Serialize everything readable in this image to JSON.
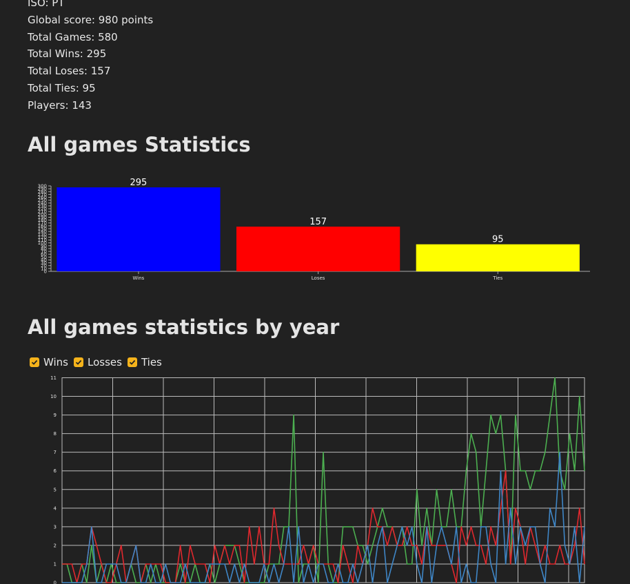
{
  "country": {
    "iso": "ISO: PT",
    "global_score": "Global score: 980 points",
    "total_games": "Total Games: 580",
    "total_wins": "Total Wins: 295",
    "total_loses": "Total Loses: 157",
    "total_ties": "Total Ties: 95",
    "players": "Players: 143"
  },
  "sections": {
    "all_games_title": "All games Statistics",
    "by_year_title": "All games statistics by year"
  },
  "legend": [
    {
      "label": "Wins",
      "checked": true,
      "icon": "checkbox-checked-icon"
    },
    {
      "label": "Losses",
      "checked": true,
      "icon": "checkbox-checked-icon"
    },
    {
      "label": "Ties",
      "checked": true,
      "icon": "checkbox-checked-icon"
    }
  ],
  "colors": {
    "background": "#212121",
    "checkbox": "#f5b31b",
    "bar_wins": "#0000ff",
    "bar_loses": "#ff0000",
    "bar_ties": "#ffff00",
    "line_wins": "#4caf50",
    "line_losses": "#e0282e",
    "line_ties": "#3f86c6"
  },
  "chart_data": [
    {
      "type": "bar",
      "categories": [
        "Wins",
        "Loses",
        "Ties"
      ],
      "values": [
        295,
        157,
        95
      ],
      "data_labels": [
        "295",
        "157",
        "95"
      ],
      "ylim": [
        0,
        300
      ],
      "yticks": [
        0,
        10,
        20,
        30,
        40,
        50,
        60,
        70,
        80,
        90,
        100,
        110,
        120,
        130,
        140,
        150,
        160,
        170,
        180,
        190,
        200,
        210,
        220,
        230,
        240,
        250,
        260,
        270,
        280,
        290,
        300
      ],
      "grid": false
    },
    {
      "type": "line",
      "ylim": [
        0,
        11
      ],
      "yticks": [
        0,
        1,
        2,
        3,
        4,
        5,
        6,
        7,
        8,
        9,
        10,
        11
      ],
      "grid": true,
      "series": [
        {
          "name": "Wins",
          "values": [
            1,
            1,
            0,
            0,
            1,
            0,
            2,
            0,
            1,
            0,
            1,
            0,
            0,
            0,
            1,
            0,
            0,
            1,
            0,
            1,
            0,
            0,
            0,
            0,
            1,
            0,
            0,
            1,
            0,
            0,
            1,
            0,
            1,
            2,
            2,
            2,
            1,
            0,
            0,
            0,
            0,
            0,
            1,
            1,
            1,
            3,
            3,
            9,
            0,
            1,
            1,
            2,
            0,
            7,
            1,
            0,
            0,
            3,
            3,
            3,
            2,
            2,
            1,
            2,
            3,
            4,
            3,
            3,
            2,
            3,
            1,
            1,
            5,
            2,
            4,
            2,
            5,
            3,
            3,
            5,
            3,
            3,
            6,
            8,
            7,
            3,
            6,
            9,
            8,
            9,
            6,
            1,
            9,
            6,
            6,
            5,
            6,
            6,
            7,
            9,
            11,
            6,
            5,
            8,
            6,
            10,
            6
          ]
        },
        {
          "name": "Losses",
          "values": [
            1,
            1,
            1,
            0,
            1,
            1,
            3,
            2,
            1,
            0,
            0,
            1,
            2,
            0,
            1,
            2,
            0,
            1,
            1,
            1,
            1,
            0,
            0,
            0,
            2,
            0,
            2,
            1,
            1,
            1,
            0,
            2,
            1,
            2,
            1,
            2,
            2,
            0,
            3,
            1,
            3,
            1,
            1,
            4,
            2,
            1,
            1,
            1,
            1,
            2,
            1,
            2,
            1,
            1,
            1,
            1,
            0,
            2,
            1,
            0,
            2,
            1,
            2,
            4,
            3,
            3,
            2,
            3,
            2,
            2,
            3,
            2,
            2,
            1,
            3,
            2,
            2,
            2,
            2,
            1,
            0,
            3,
            2,
            3,
            2,
            2,
            1,
            3,
            2,
            4,
            6,
            1,
            4,
            3,
            1,
            3,
            2,
            1,
            2,
            1,
            1,
            2,
            1,
            1,
            2,
            4,
            1
          ]
        },
        {
          "name": "Ties",
          "values": [
            0,
            0,
            0,
            0,
            0,
            1,
            3,
            0,
            0,
            1,
            1,
            1,
            0,
            0,
            1,
            2,
            0,
            0,
            1,
            0,
            0,
            1,
            0,
            0,
            0,
            1,
            0,
            0,
            0,
            0,
            1,
            1,
            1,
            1,
            0,
            1,
            0,
            1,
            0,
            0,
            0,
            1,
            0,
            1,
            0,
            1,
            3,
            0,
            3,
            0,
            1,
            0,
            1,
            1,
            0,
            0,
            1,
            0,
            0,
            1,
            0,
            1,
            2,
            0,
            2,
            3,
            0,
            1,
            2,
            3,
            2,
            3,
            1,
            0,
            3,
            0,
            2,
            3,
            2,
            1,
            3,
            0,
            1,
            0,
            0,
            3,
            3,
            1,
            0,
            6,
            1,
            4,
            1,
            3,
            2,
            3,
            3,
            1,
            0,
            4,
            3,
            7,
            2,
            1,
            3,
            0,
            3
          ]
        }
      ]
    }
  ]
}
